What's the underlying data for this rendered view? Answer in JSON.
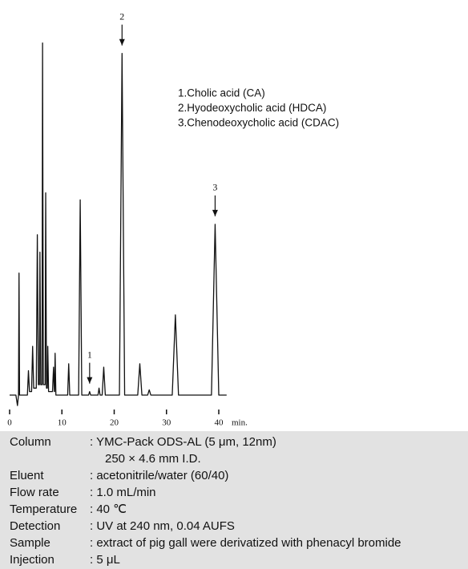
{
  "chart_data": {
    "type": "line",
    "x": [
      0,
      1.2,
      1.5,
      1.7,
      1.8,
      1.9,
      3.4,
      3.6,
      3.8,
      4.2,
      4.4,
      4.6,
      5.1,
      5.3,
      5.5,
      5.7,
      5.8,
      5.95,
      6.2,
      6.3,
      6.45,
      6.8,
      6.9,
      7.05,
      7.2,
      7.3,
      7.45,
      8.2,
      8.4,
      8.55,
      8.6,
      8.7,
      8.85,
      11.1,
      11.3,
      11.5,
      13.2,
      13.5,
      13.8,
      15.1,
      15.3,
      15.5,
      16.9,
      17.1,
      17.3,
      17.7,
      18.0,
      18.3,
      21.0,
      21.5,
      22.0,
      24.5,
      24.9,
      25.3,
      26.4,
      26.7,
      27.0,
      31.1,
      31.7,
      32.3,
      38.6,
      39.3,
      40.0,
      41.5
    ],
    "series": [
      {
        "color": "#111111",
        "values": [
          0,
          0,
          -3,
          0,
          35,
          0,
          0,
          7,
          1,
          1,
          14,
          2,
          2,
          46,
          3,
          3,
          41,
          3,
          3,
          101,
          3,
          3,
          58,
          2,
          2,
          14,
          1,
          1,
          8,
          1,
          1,
          12,
          0,
          0,
          9,
          0,
          0,
          56,
          0,
          0,
          1,
          0,
          0,
          2,
          0,
          0,
          8,
          0,
          0,
          98,
          0,
          0,
          9,
          0,
          0,
          1.5,
          0,
          0,
          23,
          0,
          0,
          49,
          0,
          0
        ]
      }
    ],
    "xlim": [
      0,
      40
    ],
    "xticks": [
      0,
      10,
      20,
      30,
      40
    ],
    "x_label": "min.",
    "ylim": [
      -5,
      105
    ],
    "annotations": [
      {
        "text": "1",
        "x": 15.3
      },
      {
        "text": "2",
        "x": 21.5
      },
      {
        "text": "3",
        "x": 39.3
      }
    ],
    "peak_names": [
      "1.Cholic acid (CA)",
      "2.Hyodeoxycholic acid (HDCA)",
      "3.Chenodeoxycholic acid (CDAC)"
    ]
  },
  "conditions": [
    {
      "label": "Column",
      "lines": [
        ": YMC-Pack ODS-AL (5 μm, 12nm)",
        "250 × 4.6 mm I.D."
      ]
    },
    {
      "label": "Eluent",
      "lines": [
        ": acetonitrile/water (60/40)"
      ]
    },
    {
      "label": "Flow rate",
      "lines": [
        ": 1.0 mL/min"
      ]
    },
    {
      "label": "Temperature",
      "lines": [
        ": 40 ℃"
      ]
    },
    {
      "label": "Detection",
      "lines": [
        ": UV at 240 nm, 0.04 AUFS"
      ]
    },
    {
      "label": "Sample",
      "lines": [
        ": extract of pig gall were derivatized with phenacyl bromide"
      ]
    },
    {
      "label": "Injection",
      "lines": [
        ": 5 μL"
      ]
    }
  ]
}
